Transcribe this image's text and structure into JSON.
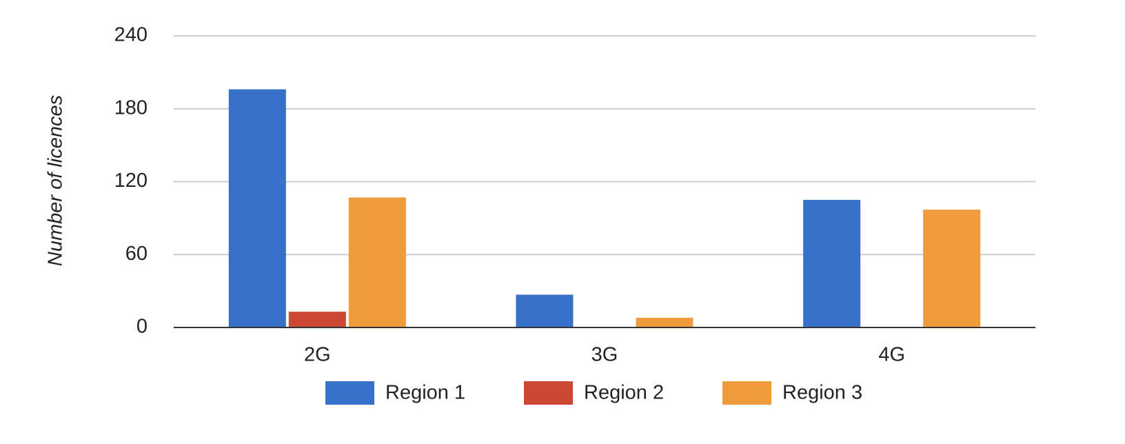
{
  "chart_data": {
    "type": "bar",
    "y_label": "Number of licences",
    "categories": [
      "2G",
      "3G",
      "4G"
    ],
    "series": [
      {
        "name": "Region 1",
        "color": "#3670c8",
        "values": [
          196,
          27,
          105
        ]
      },
      {
        "name": "Region 2",
        "color": "#cc4a35",
        "values": [
          13,
          0,
          0
        ]
      },
      {
        "name": "Region 3",
        "color": "#f09b3e",
        "values": [
          107,
          8,
          97
        ]
      }
    ],
    "ylim": [
      0,
      240
    ],
    "yticks": [
      0,
      60,
      120,
      180,
      240
    ],
    "grid": true
  }
}
